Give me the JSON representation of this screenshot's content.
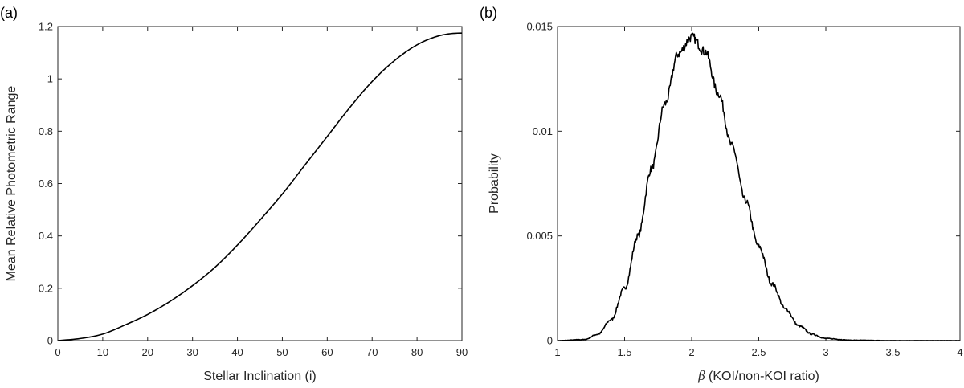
{
  "chart_data": [
    {
      "id": "a",
      "panel_label": "(a)",
      "type": "line",
      "title": "",
      "xlabel": "Stellar Inclination (i)",
      "ylabel": "Mean Relative Photometric Range",
      "xlim": [
        0,
        90
      ],
      "ylim": [
        0,
        1.2
      ],
      "xticks": [
        0,
        10,
        20,
        30,
        40,
        50,
        60,
        70,
        80,
        90
      ],
      "yticks": [
        0,
        0.2,
        0.4,
        0.6,
        0.8,
        1,
        1.2
      ],
      "xtick_labels": [
        "0",
        "10",
        "20",
        "30",
        "40",
        "50",
        "60",
        "70",
        "80",
        "90"
      ],
      "ytick_labels": [
        "0",
        "0.2",
        "0.4",
        "0.6",
        "0.8",
        "1",
        "1.2"
      ],
      "grid": false,
      "series": [
        {
          "color": "#000000",
          "x": [
            0,
            5,
            10,
            15,
            20,
            25,
            30,
            35,
            40,
            45,
            50,
            55,
            60,
            65,
            70,
            75,
            80,
            85,
            90
          ],
          "y": [
            0,
            0.008,
            0.025,
            0.06,
            0.1,
            0.15,
            0.21,
            0.28,
            0.365,
            0.46,
            0.56,
            0.67,
            0.78,
            0.89,
            0.99,
            1.07,
            1.13,
            1.165,
            1.175
          ]
        }
      ]
    },
    {
      "id": "b",
      "panel_label": "(b)",
      "type": "line",
      "title": "",
      "xlabel_symbol": "β",
      "xlabel_text": " (KOI/non-KOI ratio)",
      "ylabel": "Probability",
      "xlim": [
        1,
        4
      ],
      "ylim": [
        0,
        0.015
      ],
      "xticks": [
        1,
        1.5,
        2,
        2.5,
        3,
        3.5,
        4
      ],
      "yticks": [
        0,
        0.005,
        0.01,
        0.015
      ],
      "xtick_labels": [
        "1",
        "1.5",
        "2",
        "2.5",
        "3",
        "3.5",
        "4"
      ],
      "ytick_labels": [
        "0",
        "0.005",
        "0.01",
        "0.015"
      ],
      "grid": false,
      "series": [
        {
          "color": "#000000",
          "distribution": "approximately gaussian",
          "peak_x": 2.0,
          "peak_y": 0.0145,
          "x": [
            1.0,
            1.2,
            1.3,
            1.4,
            1.5,
            1.6,
            1.7,
            1.8,
            1.9,
            2.0,
            2.1,
            2.2,
            2.3,
            2.4,
            2.5,
            2.6,
            2.7,
            2.8,
            2.9,
            3.0,
            3.2,
            3.5,
            4.0
          ],
          "y": [
            0,
            5e-05,
            0.0003,
            0.001,
            0.0025,
            0.005,
            0.0082,
            0.0113,
            0.0137,
            0.0145,
            0.0138,
            0.0118,
            0.0093,
            0.0067,
            0.0045,
            0.0027,
            0.0015,
            0.0007,
            0.0003,
            0.0001,
            2e-05,
            0,
            0
          ]
        }
      ]
    }
  ]
}
